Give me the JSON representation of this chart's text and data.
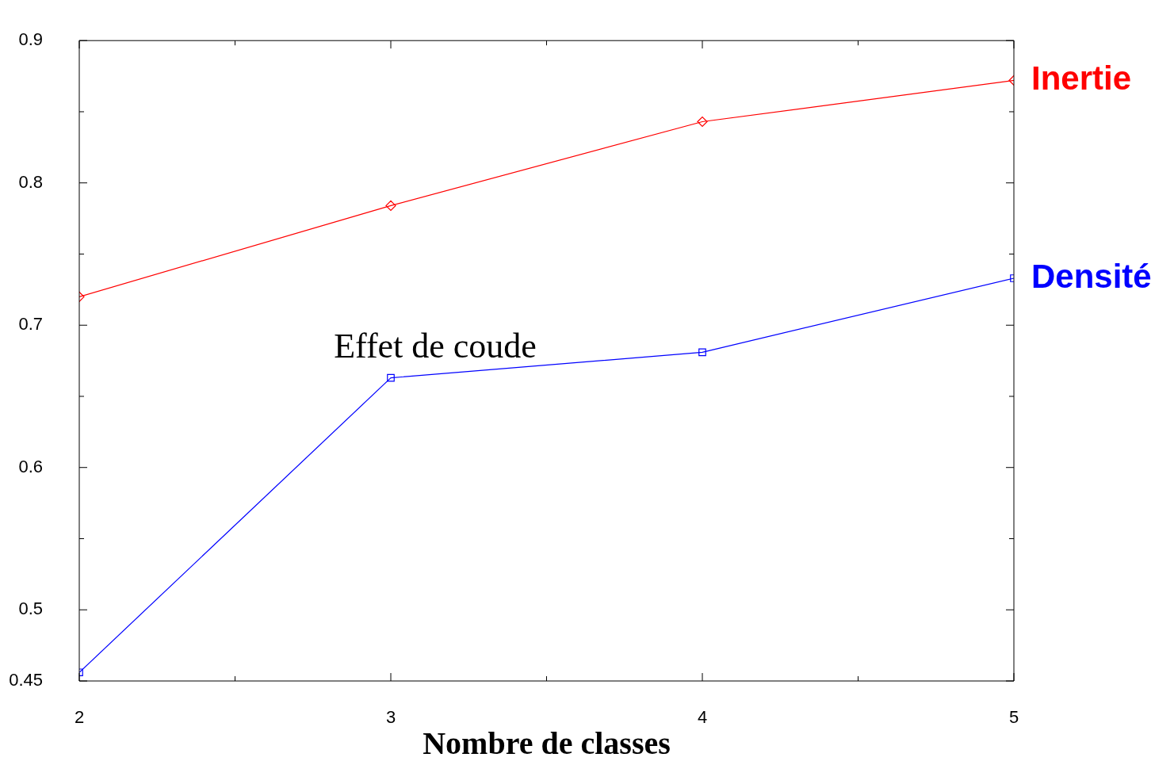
{
  "chart_data": {
    "type": "line",
    "xlabel": "Nombre de classes",
    "x": [
      2,
      3,
      4,
      5
    ],
    "xlim": [
      2,
      5
    ],
    "xticks": [
      2,
      {
        "value": 2.5,
        "label": null
      },
      3,
      {
        "value": 3.5,
        "label": null
      },
      4,
      {
        "value": 4.5,
        "label": null
      },
      5
    ],
    "ylim": [
      0.45,
      0.9
    ],
    "yticks": [
      0.45,
      0.5,
      {
        "value": 0.55,
        "label": null
      },
      0.6,
      {
        "value": 0.65,
        "label": null
      },
      0.7,
      {
        "value": 0.75,
        "label": null
      },
      0.8,
      {
        "value": 0.85,
        "label": null
      },
      0.9
    ],
    "series": [
      {
        "name": "Inertie",
        "color": "#ff0000",
        "marker": "diamond",
        "values": [
          0.72,
          0.784,
          0.843,
          0.872
        ]
      },
      {
        "name": "Densité",
        "color": "#0000ff",
        "marker": "square",
        "values": [
          0.456,
          0.663,
          0.681,
          0.733
        ]
      }
    ],
    "annotations": [
      {
        "text": "Effet de coude",
        "x": 3,
        "y": 0.663
      }
    ],
    "grid": false,
    "legend": false,
    "line_style": "solid"
  }
}
